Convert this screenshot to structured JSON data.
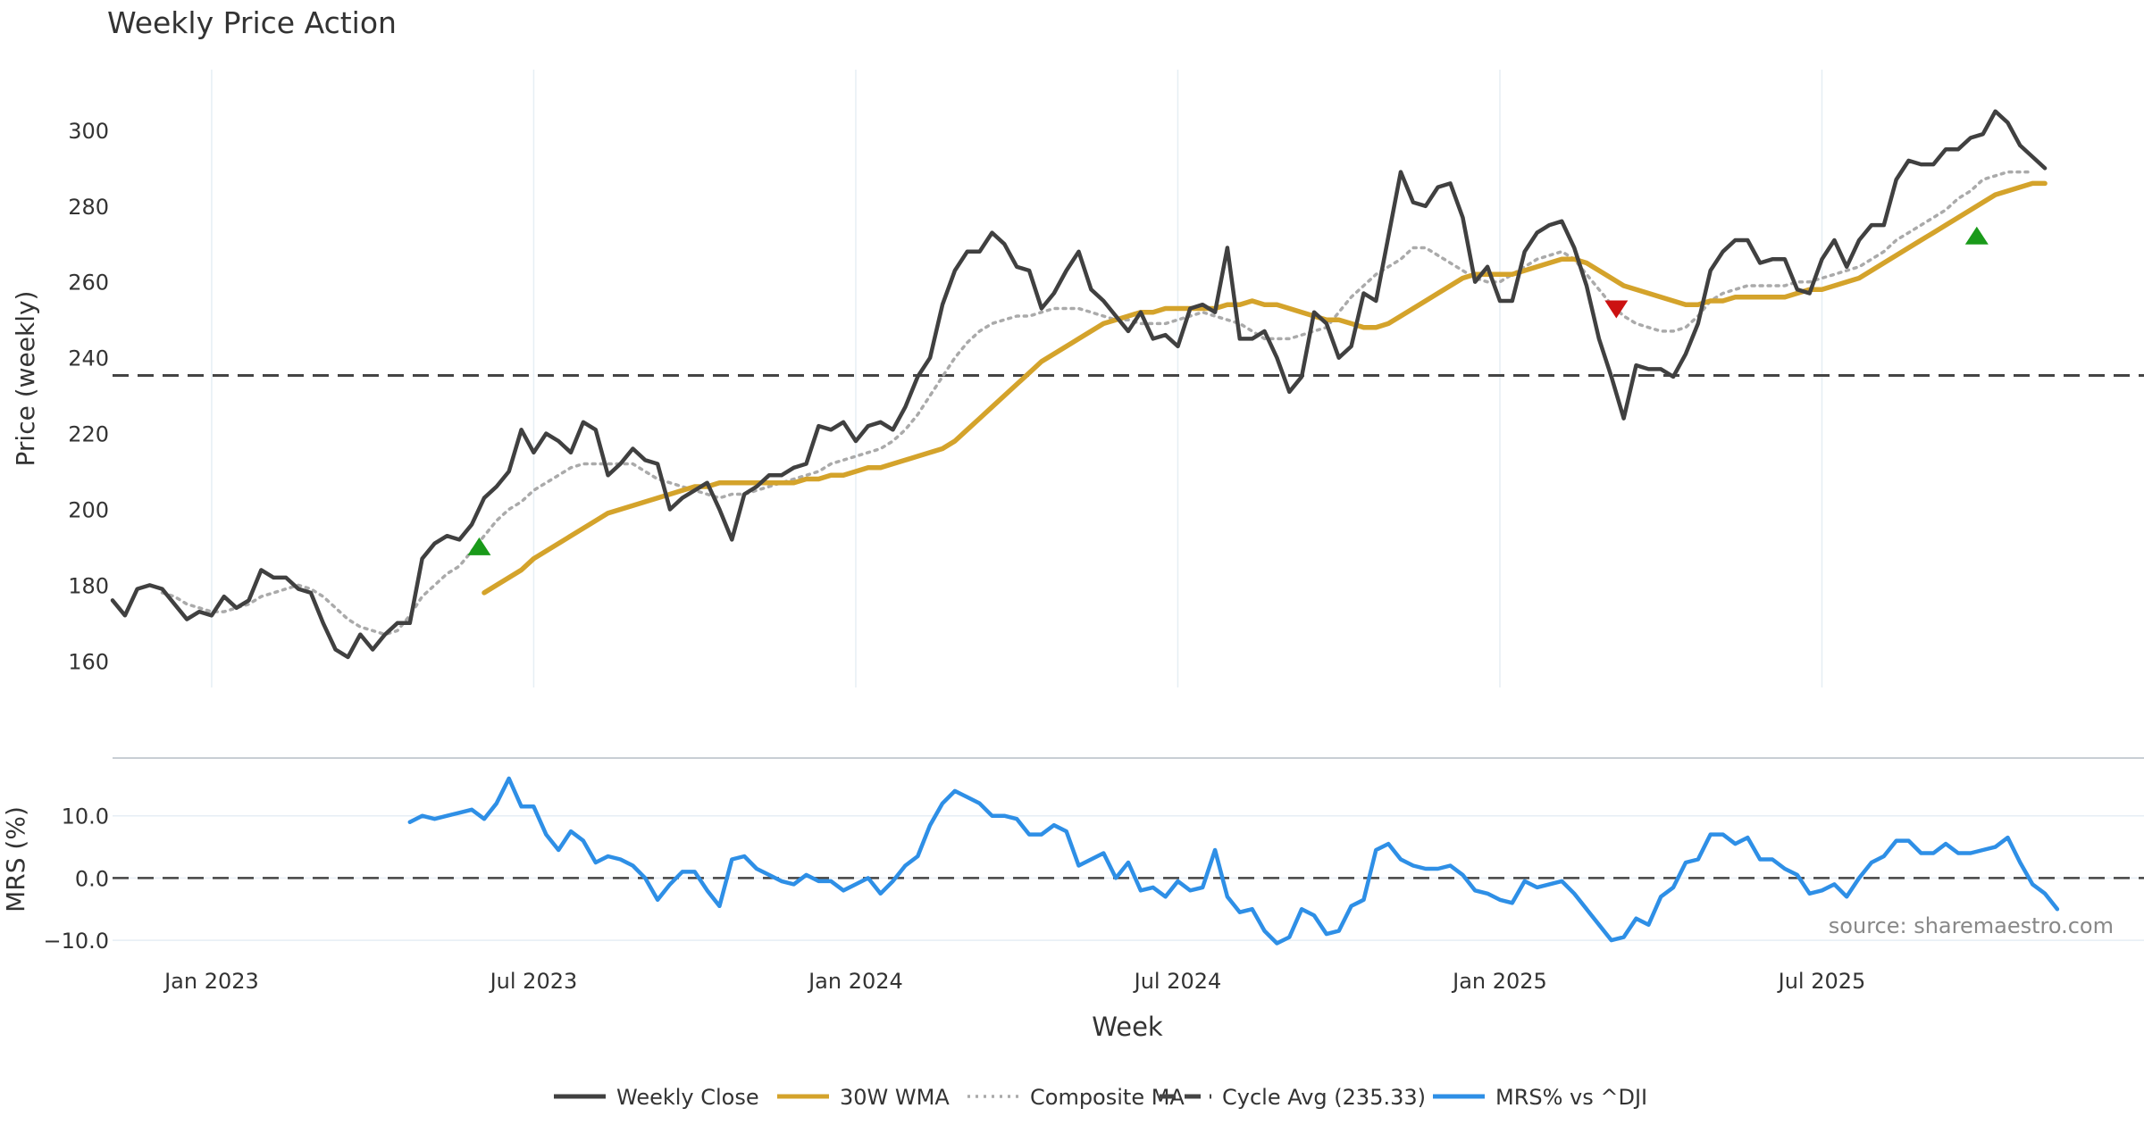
{
  "chart_data": {
    "type": "line",
    "title": "Weekly Price Action",
    "xlabel": "Week",
    "source": "source: sharemaestro.com",
    "x_ticks": [
      {
        "label": "Jan 2023",
        "week": 2
      },
      {
        "label": "Jul 2023",
        "week": 28
      },
      {
        "label": "Jan 2024",
        "week": 54
      },
      {
        "label": "Jul 2024",
        "week": 80
      },
      {
        "label": "Jan 2025",
        "week": 106
      },
      {
        "label": "Jul 2025",
        "week": 132
      }
    ],
    "x_range": [
      -6,
      158
    ],
    "price_panel": {
      "ylabel": "Price (weekly)",
      "ylim": [
        153,
        316
      ],
      "yticks": [
        160,
        180,
        200,
        220,
        240,
        260,
        280,
        300
      ],
      "start_week": -6,
      "weekly_close": [
        176,
        172,
        179,
        180,
        179,
        175,
        171,
        173,
        172,
        177,
        174,
        176,
        184,
        182,
        182,
        179,
        178,
        170,
        163,
        161,
        167,
        163,
        167,
        170,
        170,
        187,
        191,
        193,
        192,
        196,
        203,
        206,
        210,
        221,
        215,
        220,
        218,
        215,
        223,
        221,
        209,
        212,
        216,
        213,
        212,
        200,
        203,
        205,
        207,
        200,
        192,
        204,
        206,
        209,
        209,
        211,
        212,
        222,
        221,
        223,
        218,
        222,
        223,
        221,
        227,
        235,
        240,
        254,
        263,
        268,
        268,
        273,
        270,
        264,
        263,
        253,
        257,
        263,
        268,
        258,
        255,
        251,
        247,
        252,
        245,
        246,
        243,
        253,
        254,
        252,
        269,
        245,
        245,
        247,
        240,
        231,
        235,
        252,
        249,
        240,
        243,
        257,
        255,
        272,
        289,
        281,
        280,
        285,
        286,
        277,
        260,
        264,
        255,
        255,
        268,
        273,
        275,
        276,
        269,
        259,
        245,
        235,
        224,
        238,
        237,
        237,
        235,
        241,
        249,
        263,
        268,
        271,
        271,
        265,
        266,
        266,
        258,
        257,
        266,
        271,
        264,
        271,
        275,
        275,
        287,
        292,
        291,
        291,
        295,
        295,
        298,
        299,
        305,
        302,
        296,
        293,
        290
      ],
      "wma_30w": {
        "start_week": 24,
        "values": [
          178,
          180,
          182,
          184,
          187,
          189,
          191,
          193,
          195,
          197,
          199,
          200,
          201,
          202,
          203,
          204,
          205,
          206,
          206,
          207,
          207,
          207,
          207,
          207,
          207,
          207,
          208,
          208,
          209,
          209,
          210,
          211,
          211,
          212,
          213,
          214,
          215,
          216,
          218,
          221,
          224,
          227,
          230,
          233,
          236,
          239,
          241,
          243,
          245,
          247,
          249,
          250,
          251,
          252,
          252,
          253,
          253,
          253,
          253,
          253,
          254,
          254,
          255,
          254,
          254,
          253,
          252,
          251,
          250,
          250,
          249,
          248,
          248,
          249,
          251,
          253,
          255,
          257,
          259,
          261,
          262,
          262,
          262,
          262,
          263,
          264,
          265,
          266,
          266,
          265,
          263,
          261,
          259,
          258,
          257,
          256,
          255,
          254,
          254,
          255,
          255,
          256,
          256,
          256,
          256,
          256,
          257,
          258,
          258,
          259,
          260,
          261,
          263,
          265,
          267,
          269,
          271,
          273,
          275,
          277,
          279,
          281,
          283,
          284,
          285,
          286,
          286
        ]
      },
      "composite_ma": {
        "start_week": -2,
        "values": [
          178,
          177,
          175,
          174,
          173,
          173,
          174,
          175,
          177,
          178,
          179,
          180,
          179,
          177,
          174,
          171,
          169,
          168,
          167,
          168,
          172,
          177,
          180,
          183,
          185,
          189,
          193,
          197,
          200,
          202,
          205,
          207,
          209,
          211,
          212,
          212,
          212,
          212,
          212,
          210,
          208,
          207,
          206,
          205,
          204,
          203,
          204,
          204,
          205,
          206,
          207,
          208,
          209,
          210,
          212,
          213,
          214,
          215,
          216,
          218,
          221,
          225,
          230,
          235,
          240,
          244,
          247,
          249,
          250,
          251,
          251,
          252,
          253,
          253,
          253,
          252,
          251,
          250,
          250,
          249,
          249,
          249,
          250,
          251,
          252,
          251,
          250,
          249,
          247,
          245,
          245,
          245,
          246,
          247,
          248,
          252,
          256,
          259,
          262,
          264,
          266,
          269,
          269,
          267,
          265,
          263,
          261,
          260,
          260,
          262,
          264,
          266,
          267,
          268,
          266,
          262,
          258,
          254,
          251,
          249,
          248,
          247,
          247,
          248,
          251,
          255,
          257,
          258,
          259,
          259,
          259,
          259,
          260,
          260,
          261,
          262,
          263,
          264,
          266,
          268,
          271,
          273,
          275,
          277,
          279,
          282,
          284,
          287,
          288,
          289,
          289,
          289
        ]
      },
      "cycle_avg": {
        "label": "Cycle Avg (235.33)",
        "value": 235.33
      },
      "signals": [
        {
          "type": "buy",
          "week": 23.6,
          "value": 190
        },
        {
          "type": "sell",
          "week": 115.4,
          "value": 253
        },
        {
          "type": "buy",
          "week": 144.5,
          "value": 272
        }
      ]
    },
    "mrs_panel": {
      "ylabel": "MRS (%)",
      "ylim": [
        -12,
        18
      ],
      "yticks": [
        -10.0,
        0.0,
        10.0
      ],
      "ytick_labels": [
        "−10.0",
        "0.0",
        "10.0"
      ],
      "start_week": 18,
      "values": [
        9,
        10,
        9.5,
        10,
        10.5,
        11,
        9.5,
        12,
        16,
        11.5,
        11.5,
        7,
        4.5,
        7.5,
        6,
        2.5,
        3.5,
        3,
        2,
        0,
        -3.5,
        -1,
        1,
        1,
        -2,
        -4.5,
        3,
        3.5,
        1.5,
        0.5,
        -0.5,
        -1,
        0.5,
        -0.5,
        -0.5,
        -2,
        -1,
        0,
        -2.5,
        -0.5,
        2,
        3.5,
        8.5,
        12,
        14,
        13,
        12,
        10,
        10,
        9.5,
        7,
        7,
        8.5,
        7.5,
        2,
        3,
        4,
        0,
        2.5,
        -2,
        -1.5,
        -3,
        -0.5,
        -2,
        -1.5,
        4.5,
        -3,
        -5.5,
        -5,
        -8.5,
        -10.5,
        -9.5,
        -5,
        -6,
        -9,
        -8.5,
        -4.5,
        -3.5,
        4.5,
        5.5,
        3,
        2,
        1.5,
        1.5,
        2,
        0.5,
        -2,
        -2.5,
        -3.5,
        -4,
        -0.5,
        -1.5,
        -1,
        -0.5,
        -2.5,
        -5,
        -7.5,
        -10,
        -9.5,
        -6.5,
        -7.5,
        -3,
        -1.5,
        2.5,
        3,
        7,
        7,
        5.5,
        6.5,
        3,
        3,
        1.5,
        0.5,
        -2.5,
        -2,
        -1,
        -3,
        0,
        2.5,
        3.5,
        6,
        6,
        4,
        4,
        5.5,
        4,
        4,
        4.5,
        5,
        6.5,
        2.5,
        -1,
        -2.5,
        -5
      ]
    },
    "legend": [
      {
        "label": "Weekly Close",
        "color": "#404040",
        "style": "solid"
      },
      {
        "label": "30W WMA",
        "color": "#d4a32b",
        "style": "solid"
      },
      {
        "label": "Composite MA",
        "color": "#aaaaaa",
        "style": "dotted"
      },
      {
        "label": "Cycle Avg (235.33)",
        "color": "#444444",
        "style": "dashed"
      },
      {
        "label": "MRS% vs ^DJI",
        "color": "#2e8fe6",
        "style": "solid"
      }
    ],
    "colors": {
      "close": "#404040",
      "wma": "#d4a32b",
      "composite": "#aaaaaa",
      "cycle": "#444444",
      "mrs": "#2e8fe6",
      "buy": "#1a9a1a",
      "sell": "#cc1111",
      "grid": "#e6eef4"
    }
  }
}
